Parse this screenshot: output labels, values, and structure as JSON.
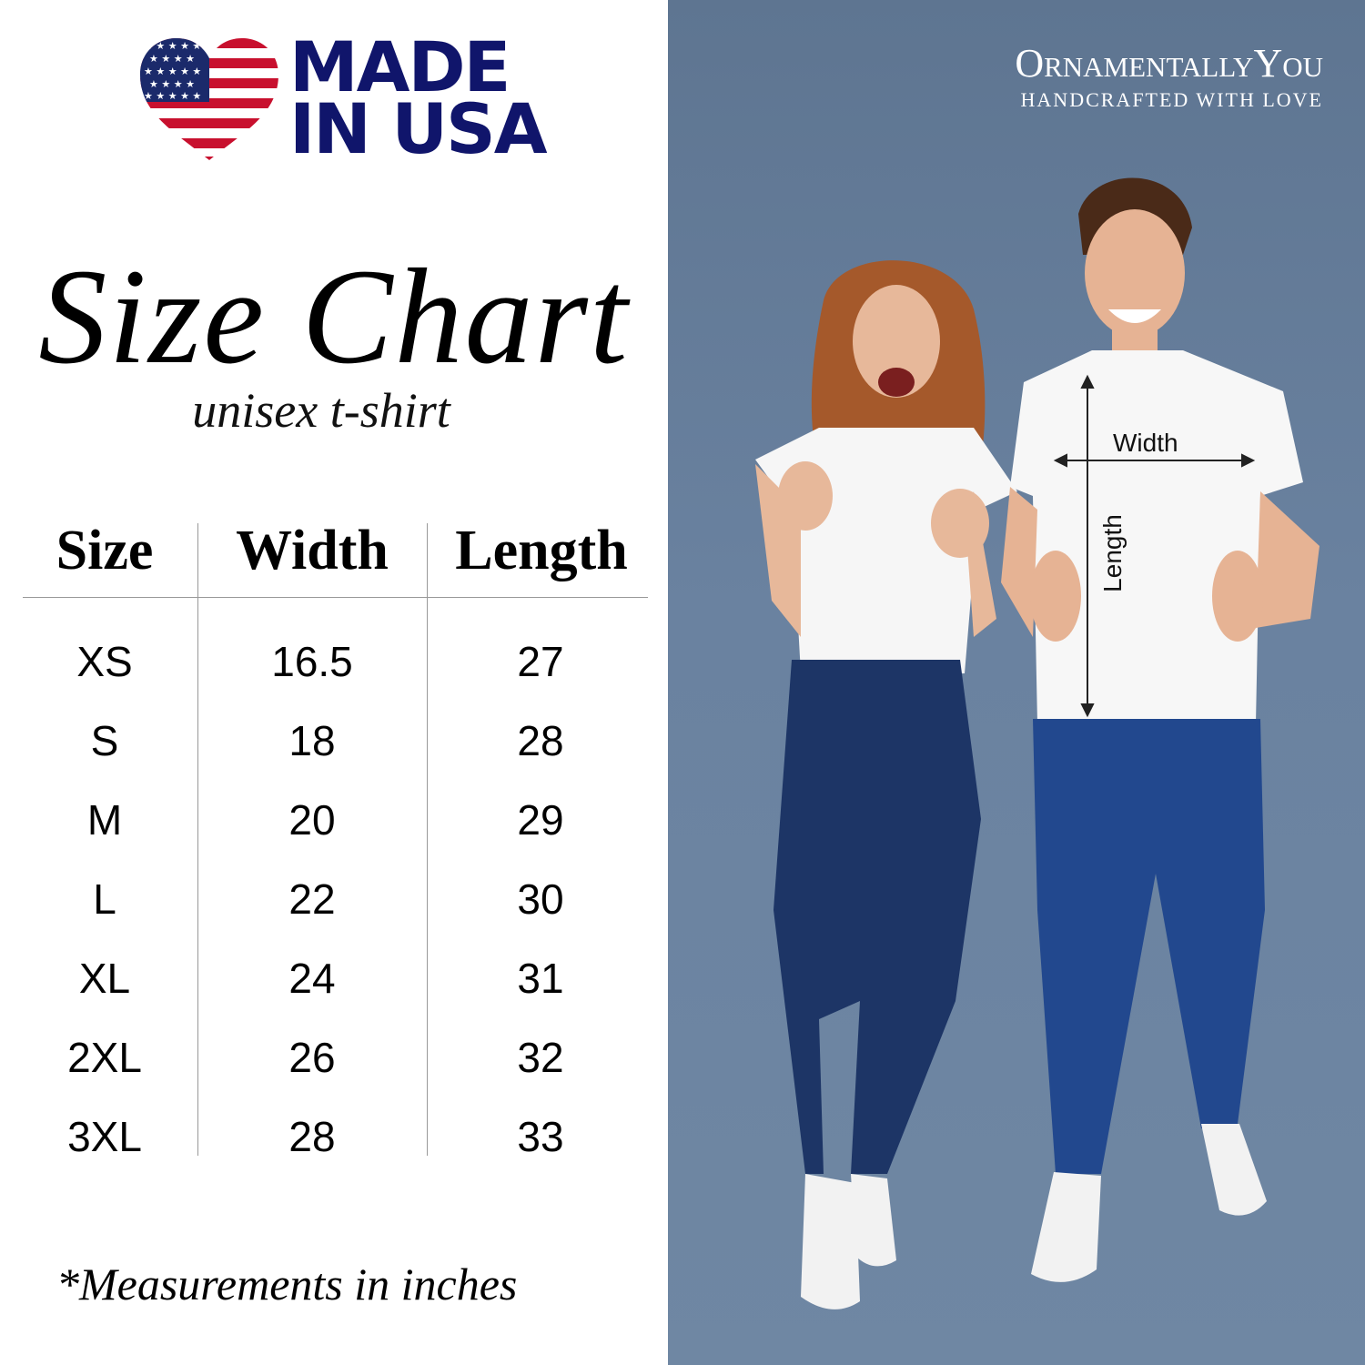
{
  "badge": {
    "line1": "MADE",
    "line2": "IN USA",
    "icon": "us-flag-heart-icon",
    "text_color": "#10156b"
  },
  "title": "Size Chart",
  "subtitle": "unisex t-shirt",
  "table": {
    "headers": [
      "Size",
      "Width",
      "Length"
    ],
    "rows": [
      [
        "XS",
        "16.5",
        "27"
      ],
      [
        "S",
        "18",
        "28"
      ],
      [
        "M",
        "20",
        "29"
      ],
      [
        "L",
        "22",
        "30"
      ],
      [
        "XL",
        "24",
        "31"
      ],
      [
        "2XL",
        "26",
        "32"
      ],
      [
        "3XL",
        "28",
        "33"
      ]
    ]
  },
  "footnote": "*Measurements in inches",
  "brand": {
    "name": "OrnamentallyYou",
    "tagline": "HANDCRAFTED WITH LOVE"
  },
  "photo": {
    "width_label": "Width",
    "length_label": "Length",
    "background": "#6a82a0"
  }
}
